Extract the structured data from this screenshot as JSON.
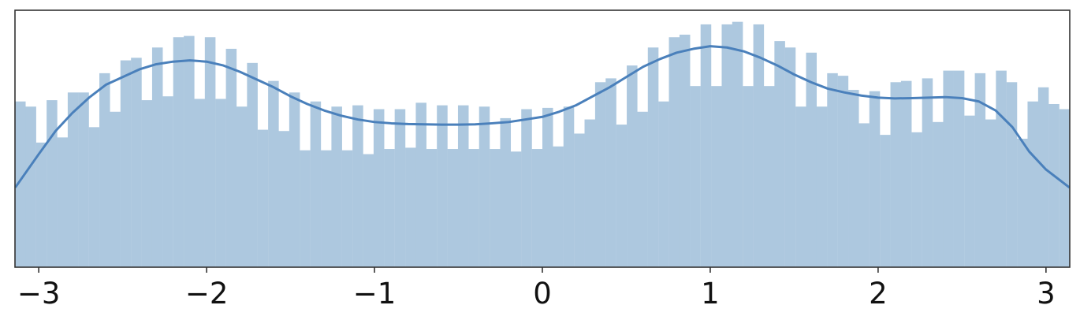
{
  "chart_data": {
    "type": "histogram",
    "title": "",
    "xlabel": "",
    "ylabel": "",
    "xlim": [
      -3.1416,
      3.1416
    ],
    "ylim": [
      0,
      1.0
    ],
    "x_ticks": [
      {
        "value": -3,
        "label": "−3"
      },
      {
        "value": -2,
        "label": "−2"
      },
      {
        "value": -1,
        "label": "−1"
      },
      {
        "value": 0,
        "label": "0"
      },
      {
        "value": 1,
        "label": "1"
      },
      {
        "value": 2,
        "label": "2"
      },
      {
        "value": 3,
        "label": "3"
      }
    ],
    "y_ticks_shown": false,
    "grid": false,
    "legend": "none",
    "colors": {
      "bars": "#adc8df",
      "kde": "#4a80bb",
      "frame": "#333333"
    },
    "histogram": {
      "bin_count": 100,
      "bin_range": [
        -3.1416,
        3.1416
      ],
      "heights": [
        0.645,
        0.625,
        0.485,
        0.65,
        0.505,
        0.68,
        0.68,
        0.545,
        0.755,
        0.605,
        0.805,
        0.815,
        0.65,
        0.855,
        0.665,
        0.895,
        0.9,
        0.655,
        0.895,
        0.655,
        0.85,
        0.625,
        0.795,
        0.535,
        0.725,
        0.53,
        0.68,
        0.455,
        0.645,
        0.455,
        0.625,
        0.455,
        0.63,
        0.44,
        0.615,
        0.46,
        0.615,
        0.465,
        0.64,
        0.46,
        0.63,
        0.46,
        0.63,
        0.46,
        0.625,
        0.46,
        0.58,
        0.45,
        0.615,
        0.46,
        0.62,
        0.47,
        0.625,
        0.52,
        0.575,
        0.72,
        0.735,
        0.555,
        0.785,
        0.605,
        0.855,
        0.645,
        0.895,
        0.905,
        0.705,
        0.945,
        0.705,
        0.945,
        0.955,
        0.705,
        0.945,
        0.705,
        0.88,
        0.855,
        0.625,
        0.835,
        0.625,
        0.755,
        0.745,
        0.69,
        0.56,
        0.685,
        0.515,
        0.72,
        0.725,
        0.525,
        0.735,
        0.565,
        0.765,
        0.765,
        0.59,
        0.755,
        0.575,
        0.765,
        0.72,
        0.5,
        0.645,
        0.7,
        0.635,
        0.615
      ]
    },
    "kde": {
      "x": [
        -3.14,
        -3.0,
        -2.9,
        -2.8,
        -2.7,
        -2.6,
        -2.5,
        -2.4,
        -2.3,
        -2.2,
        -2.1,
        -2.0,
        -1.9,
        -1.8,
        -1.7,
        -1.6,
        -1.5,
        -1.4,
        -1.3,
        -1.2,
        -1.1,
        -1.0,
        -0.9,
        -0.8,
        -0.7,
        -0.6,
        -0.5,
        -0.4,
        -0.3,
        -0.2,
        -0.1,
        0.0,
        0.1,
        0.2,
        0.3,
        0.4,
        0.5,
        0.6,
        0.7,
        0.8,
        0.9,
        1.0,
        1.1,
        1.2,
        1.3,
        1.4,
        1.5,
        1.6,
        1.7,
        1.8,
        1.9,
        2.0,
        2.1,
        2.2,
        2.3,
        2.4,
        2.5,
        2.6,
        2.7,
        2.8,
        2.9,
        3.0,
        3.14
      ],
      "y": [
        0.31,
        0.44,
        0.53,
        0.6,
        0.66,
        0.71,
        0.74,
        0.77,
        0.79,
        0.8,
        0.805,
        0.8,
        0.785,
        0.76,
        0.73,
        0.7,
        0.665,
        0.635,
        0.61,
        0.59,
        0.575,
        0.565,
        0.56,
        0.557,
        0.556,
        0.555,
        0.555,
        0.556,
        0.56,
        0.565,
        0.575,
        0.585,
        0.605,
        0.63,
        0.665,
        0.7,
        0.74,
        0.78,
        0.81,
        0.835,
        0.85,
        0.86,
        0.855,
        0.84,
        0.815,
        0.785,
        0.75,
        0.72,
        0.695,
        0.68,
        0.668,
        0.66,
        0.657,
        0.658,
        0.66,
        0.662,
        0.658,
        0.645,
        0.61,
        0.545,
        0.45,
        0.38,
        0.31
      ]
    }
  }
}
